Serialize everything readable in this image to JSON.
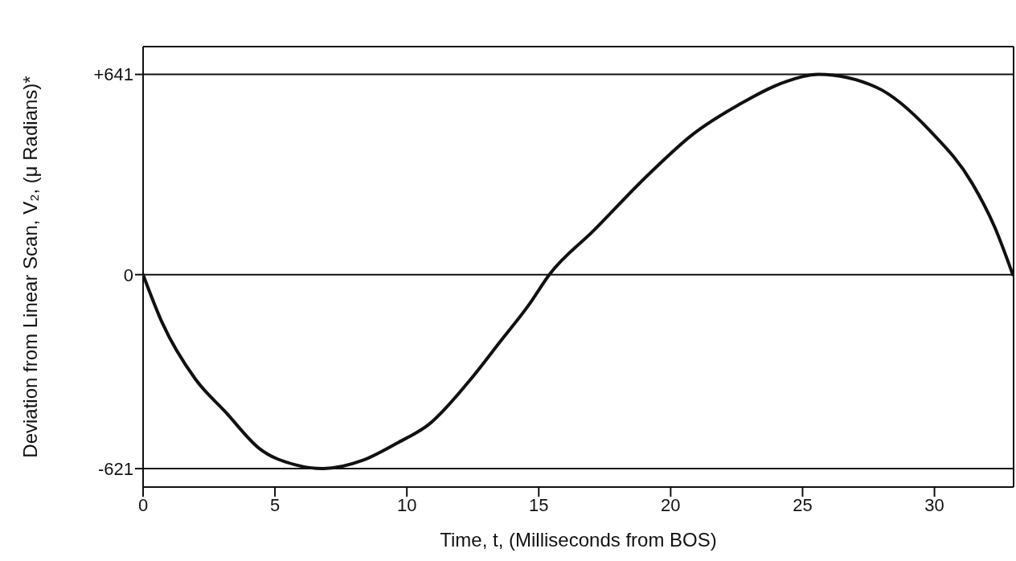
{
  "chart_data": {
    "type": "line",
    "xlabel": "Time, t, (Milliseconds from BOS)",
    "ylabel": "Deviation from Linear Scan, V₂, (μ Radians)*",
    "xlim": [
      0,
      33
    ],
    "xticks": [
      0,
      5,
      10,
      15,
      20,
      25,
      30
    ],
    "ylim": [
      -680,
      730
    ],
    "yticks": [
      {
        "value": -621,
        "label": "-621"
      },
      0,
      {
        "value": 641,
        "label": "+641"
      }
    ],
    "grid": "y",
    "marker": "none",
    "line_style": "solid",
    "series": [
      {
        "color": "#111111",
        "x": [
          0,
          0.72,
          1.98,
          3.14,
          4.4,
          5.78,
          6.83,
          8.31,
          9.68,
          10.84,
          12.32,
          13.58,
          14.64,
          15.4,
          17.08,
          19.14,
          20.85,
          22.56,
          24.37,
          25.6,
          27.79,
          29.85,
          31.44,
          32.29,
          32.97
        ],
        "values": [
          0,
          -153,
          -334,
          -441,
          -556,
          -609,
          -621,
          -595,
          -537,
          -479,
          -345,
          -210,
          -95,
          0,
          141,
          319,
          450,
          543,
          618,
          641,
          600,
          459,
          291,
          151,
          0
        ]
      }
    ]
  }
}
